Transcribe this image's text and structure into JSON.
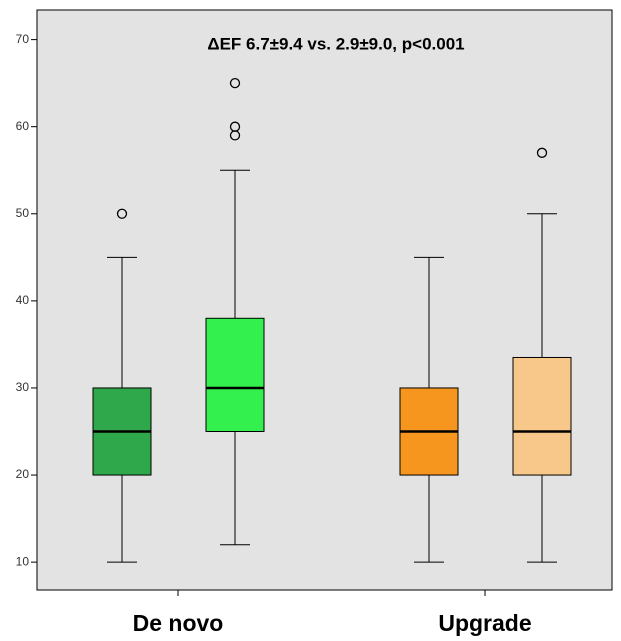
{
  "chart_data": {
    "type": "boxplot",
    "annotation": "ΔEF 6.7±9.4 vs. 2.9±9.0, p<0.001",
    "categories": [
      "De novo",
      "Upgrade"
    ],
    "ylim": [
      6.8,
      73.4
    ],
    "yticks": [
      10,
      20,
      30,
      40,
      50,
      60,
      70
    ],
    "background": "#e3e3e3",
    "series": [
      {
        "colors": [
          "#2ea84a",
          "#f7961e"
        ],
        "boxes": [
          {
            "min": 10,
            "q1": 20,
            "median": 25,
            "q3": 30,
            "max": 45,
            "outliers": [
              50
            ]
          },
          {
            "min": 10,
            "q1": 20,
            "median": 25,
            "q3": 30,
            "max": 45,
            "outliers": []
          }
        ]
      },
      {
        "colors": [
          "#33f04f",
          "#f8c88a"
        ],
        "boxes": [
          {
            "min": 12,
            "q1": 25,
            "median": 30,
            "q3": 38,
            "max": 55,
            "outliers": [
              59,
              60,
              65
            ]
          },
          {
            "min": 10,
            "q1": 20,
            "median": 25,
            "q3": 33.5,
            "max": 50,
            "outliers": [
              57
            ]
          }
        ]
      }
    ]
  }
}
